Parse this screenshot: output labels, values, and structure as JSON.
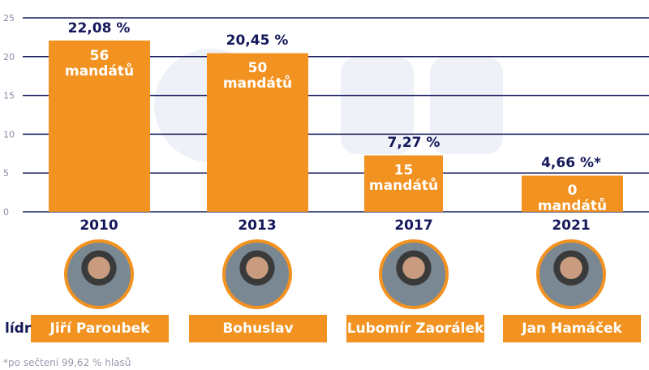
{
  "chart_data": {
    "type": "bar",
    "categories": [
      "2010",
      "2013",
      "2017",
      "2021"
    ],
    "values": [
      22.08,
      20.45,
      7.27,
      4.66
    ],
    "value_labels": [
      "22,08 %",
      "20,45 %",
      "7,27 %",
      "4,66 %*"
    ],
    "bar_labels": [
      [
        "56",
        "mandátů"
      ],
      [
        "50",
        "mandátů"
      ],
      [
        "15",
        "mandátů"
      ],
      [
        "0",
        "mandátů"
      ]
    ],
    "ylim": [
      0,
      25
    ],
    "yticks": [
      0,
      5,
      10,
      15,
      20,
      25
    ],
    "grid": true,
    "bar_color": "#f29220",
    "grid_color": "#14185a"
  },
  "leaders": {
    "label": "lídr",
    "names": [
      "Jiří Paroubek",
      "Bohuslav Sobotka",
      "Lubomír Zaorálek",
      "Jan Hamáček"
    ]
  },
  "footnote": "*po sečtení 99,62 % hlasů",
  "watermark": "24"
}
